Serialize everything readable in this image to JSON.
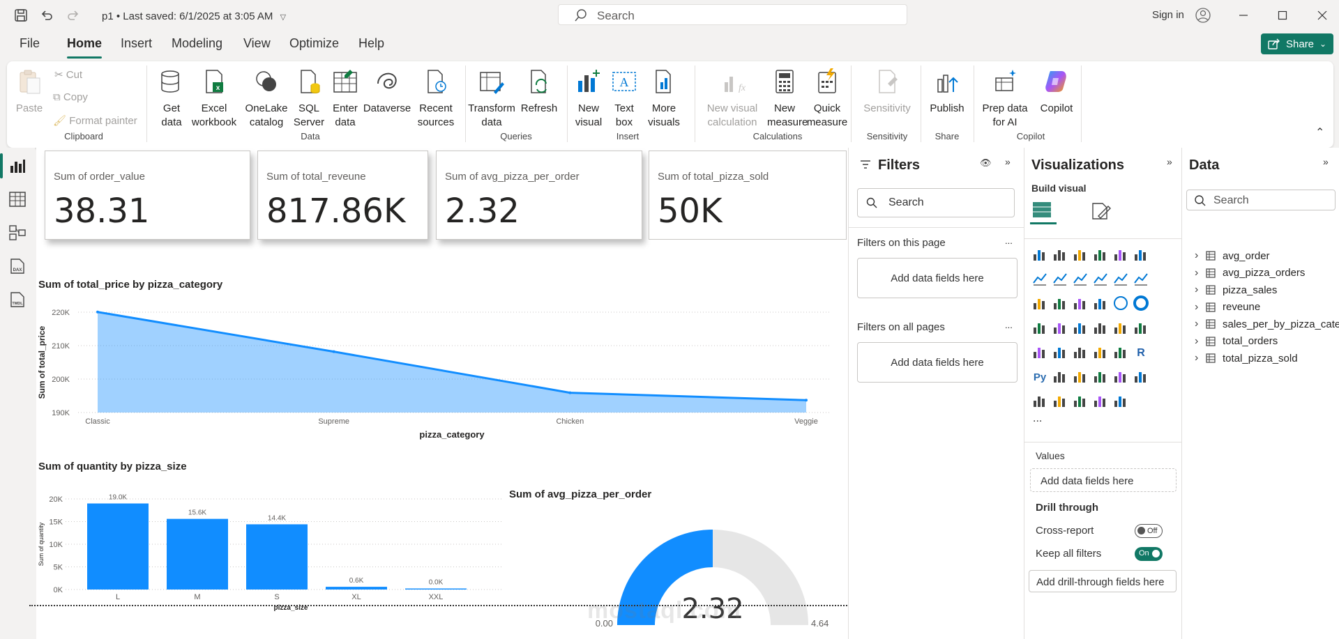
{
  "titlebar": {
    "file_title": "p1 • Last saved: 6/1/2025 at 3:05 AM",
    "search_placeholder": "Search",
    "sign_in": "Sign in"
  },
  "menu": {
    "items": [
      "File",
      "Home",
      "Insert",
      "Modeling",
      "View",
      "Optimize",
      "Help"
    ],
    "active": "Home",
    "share_label": "Share"
  },
  "ribbon": {
    "clipboard": {
      "paste": "Paste",
      "cut": "Cut",
      "copy": "Copy",
      "format_painter": "Format painter",
      "label": "Clipboard"
    },
    "data": {
      "get_data": "Get data",
      "excel": "Excel workbook",
      "onelake": "OneLake catalog",
      "sql": "SQL Server",
      "enter": "Enter data",
      "dataverse": "Dataverse",
      "recent": "Recent sources",
      "label": "Data"
    },
    "queries": {
      "transform": "Transform data",
      "refresh": "Refresh",
      "label": "Queries"
    },
    "insert": {
      "new_visual": "New visual",
      "text_box": "Text box",
      "more_visuals": "More visuals",
      "label": "Insert"
    },
    "calculations": {
      "new_visual_calc": "New visual calculation",
      "new_measure": "New measure",
      "quick_measure": "Quick measure",
      "label": "Calculations"
    },
    "sensitivity": {
      "btn": "Sensitivity",
      "label": "Sensitivity"
    },
    "share": {
      "publish": "Publish",
      "label": "Share"
    },
    "copilot": {
      "prep": "Prep data for AI",
      "copilot": "Copilot",
      "label": "Copilot"
    }
  },
  "cards": [
    {
      "title": "Sum of order_value",
      "value": "38.31"
    },
    {
      "title": "Sum of total_reveune",
      "value": "817.86K"
    },
    {
      "title": "Sum of avg_pizza_per_order",
      "value": "2.32"
    },
    {
      "title": "Sum of total_pizza_sold",
      "value": "50K"
    }
  ],
  "charts": {
    "area_title": "Sum of total_price by pizza_category",
    "bar_title": "Sum of quantity by pizza_size",
    "gauge_title": "Sum of avg_pizza_per_order"
  },
  "chart_data": [
    {
      "type": "area",
      "title": "Sum of total_price by pizza_category",
      "xlabel": "pizza_category",
      "ylabel": "Sum of total_price",
      "categories": [
        "Classic",
        "Supreme",
        "Chicken",
        "Veggie"
      ],
      "values": [
        220053,
        208197,
        195920,
        193690
      ],
      "ylim": [
        190000,
        220000
      ],
      "yticks": [
        "190K",
        "200K",
        "210K",
        "220K"
      ],
      "color": "#118dff"
    },
    {
      "type": "bar",
      "title": "Sum of quantity by pizza_size",
      "xlabel": "pizza_size",
      "ylabel": "Sum of quantity",
      "categories": [
        "L",
        "M",
        "S",
        "XL",
        "XXL"
      ],
      "values": [
        19000,
        15600,
        14400,
        600,
        0
      ],
      "data_labels": [
        "19.0K",
        "15.6K",
        "14.4K",
        "0.6K",
        "0.0K"
      ],
      "ylim": [
        0,
        20000
      ],
      "yticks": [
        "0K",
        "5K",
        "10K",
        "15K",
        "20K"
      ],
      "color": "#118dff"
    },
    {
      "type": "gauge",
      "title": "Sum of avg_pizza_per_order",
      "value": 2.32,
      "value_label": "2.32",
      "min": 0,
      "max": 4.64,
      "min_label": "0.00",
      "max_label": "4.64",
      "color": "#118dff"
    }
  ],
  "filters": {
    "title": "Filters",
    "search_placeholder": "Search",
    "on_page": "Filters on this page",
    "on_all": "Filters on all pages",
    "add_fields": "Add data fields here",
    "more": "..."
  },
  "visualizations": {
    "title": "Visualizations",
    "build": "Build visual",
    "values": "Values",
    "add_fields": "Add data fields here",
    "drill": "Drill through",
    "cross_report": "Cross-report",
    "cross_state": "Off",
    "keep_filters": "Keep all filters",
    "keep_state": "On",
    "add_drill": "Add drill-through fields here",
    "more": "..."
  },
  "data_pane": {
    "title": "Data",
    "search_placeholder": "Search",
    "tables": [
      "avg_order",
      "avg_pizza_orders",
      "pizza_sales",
      "reveune",
      "sales_per_by_pizza_cate",
      "total_orders",
      "total_pizza_sold"
    ]
  },
  "watermark": "mostaql.com"
}
